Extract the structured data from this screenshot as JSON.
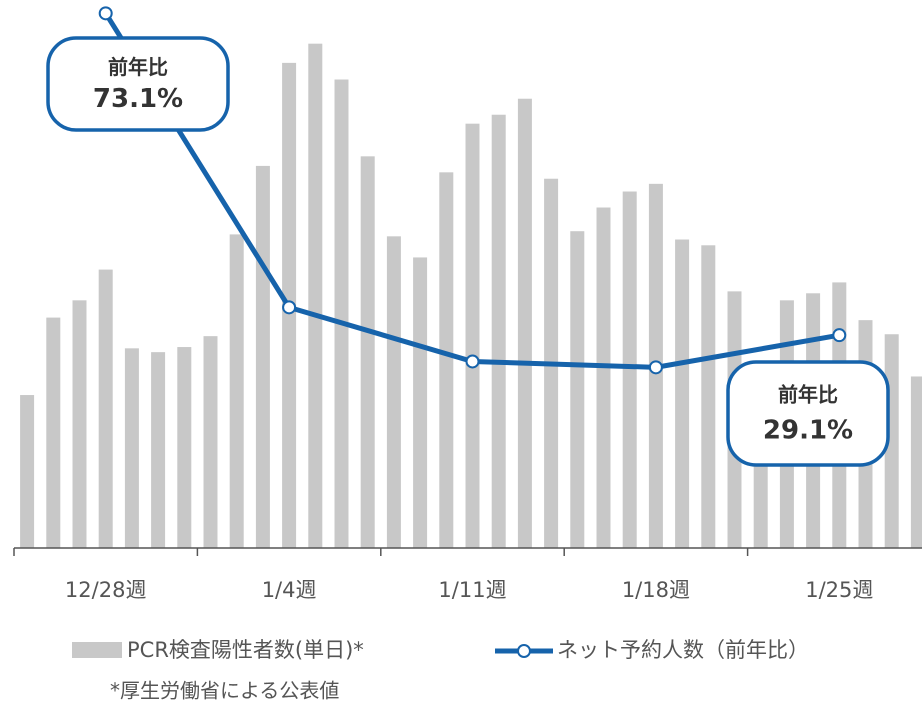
{
  "chart_data": {
    "type": "bar_line",
    "categories": [
      null,
      null,
      null,
      "12/28週",
      null,
      null,
      null,
      null,
      null,
      null,
      "1/4週",
      null,
      null,
      null,
      null,
      null,
      null,
      "1/11週",
      null,
      null,
      null,
      null,
      null,
      null,
      "1/18週",
      null,
      null,
      null,
      null,
      null,
      null,
      "1/25週",
      null,
      null,
      null
    ],
    "series": [
      {
        "name": "PCR検査陽性者数(単日)*",
        "color": "#c8c8c8",
        "type": "bar",
        "values": [
          2390,
          3600,
          3870,
          4350,
          3120,
          3060,
          3140,
          3310,
          4900,
          5970,
          7580,
          7880,
          7320,
          6120,
          4870,
          4540,
          5870,
          6630,
          6770,
          7020,
          5770,
          4950,
          5320,
          5570,
          5690,
          4820,
          4730,
          4010,
          2620,
          3870,
          3980,
          4150,
          3560,
          3340,
          2680
        ]
      },
      {
        "name": "ネット予約人数（前年比）",
        "color": "#1663ab",
        "type": "line",
        "axis": "y2",
        "values": [
          null,
          null,
          null,
          73.1,
          null,
          null,
          null,
          null,
          null,
          null,
          32.9,
          null,
          null,
          null,
          null,
          null,
          null,
          25.5,
          null,
          null,
          null,
          null,
          null,
          null,
          24.7,
          null,
          null,
          null,
          null,
          null,
          null,
          29.1,
          null,
          null,
          null
        ],
        "value_labels": [
          null,
          null,
          null,
          "73.1%",
          null,
          null,
          null,
          null,
          null,
          null,
          null,
          null,
          null,
          null,
          null,
          null,
          null,
          null,
          null,
          null,
          null,
          null,
          null,
          null,
          null,
          null,
          null,
          null,
          null,
          null,
          null,
          "29.1%",
          null,
          null,
          null
        ]
      }
    ],
    "annotations": [
      "前年比",
      "前年比"
    ],
    "note": "*厚生労働省による公表値",
    "ylim": [
      0,
      8000
    ],
    "y2lim": [
      0,
      70
    ]
  }
}
